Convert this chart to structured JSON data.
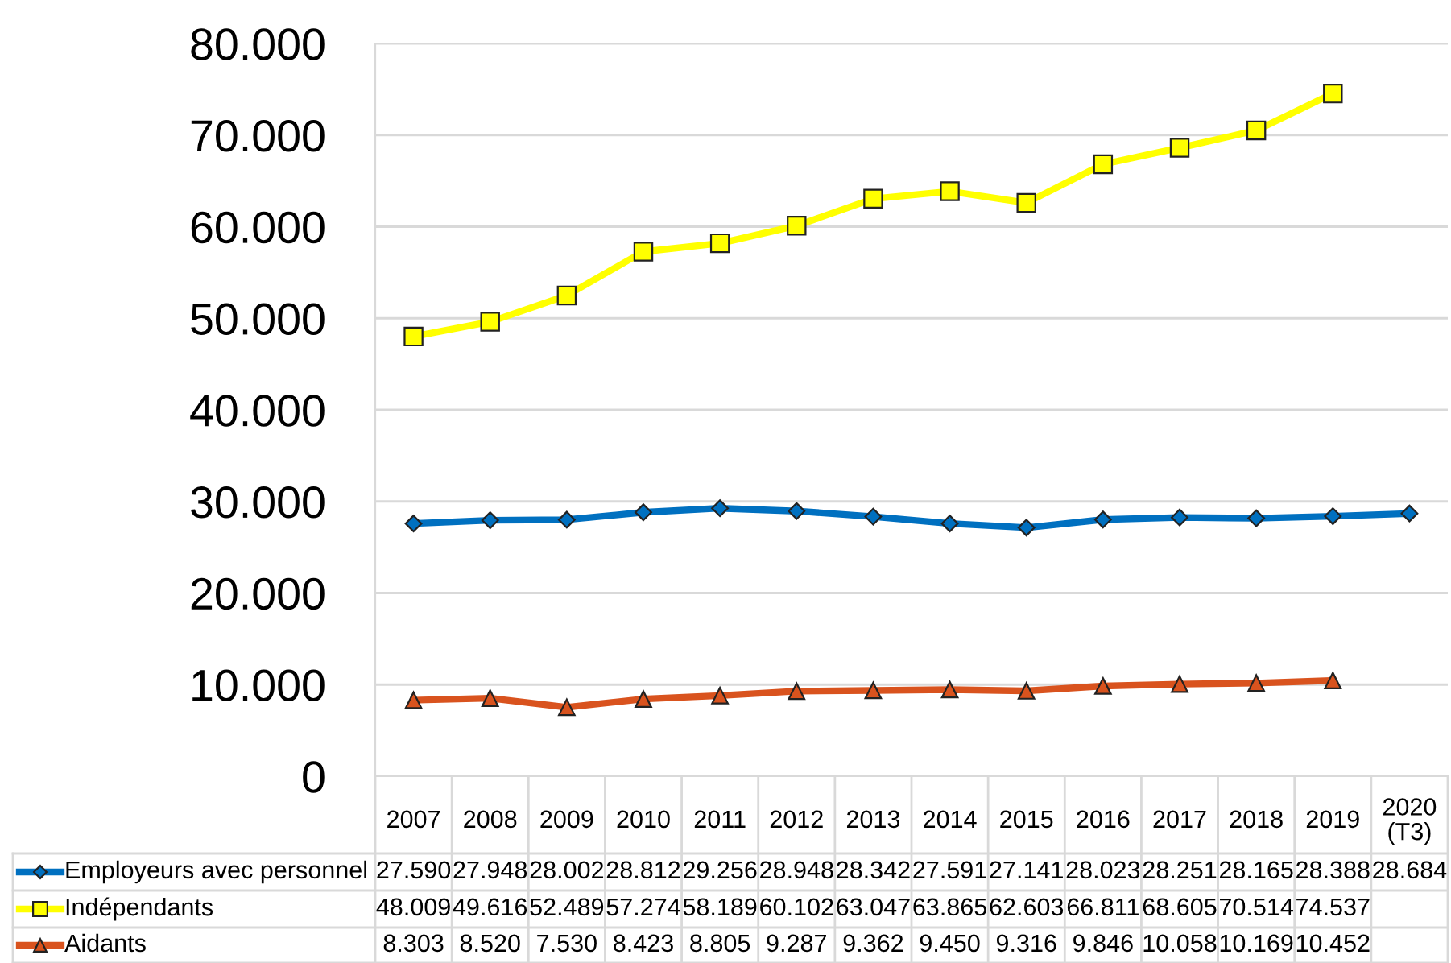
{
  "chart_data": {
    "type": "line",
    "categories": [
      "2007",
      "2008",
      "2009",
      "2010",
      "2011",
      "2012",
      "2013",
      "2014",
      "2015",
      "2016",
      "2017",
      "2018",
      "2019",
      "2020\n(T3)"
    ],
    "series": [
      {
        "name": "Employeurs avec personnel",
        "color": "#0070c0",
        "marker": "diamond",
        "values": [
          27590,
          27948,
          28002,
          28812,
          29256,
          28948,
          28342,
          27591,
          27141,
          28023,
          28251,
          28165,
          28388,
          28684
        ],
        "value_labels": [
          "27.590",
          "27.948",
          "28.002",
          "28.812",
          "29.256",
          "28.948",
          "28.342",
          "27.591",
          "27.141",
          "28.023",
          "28.251",
          "28.165",
          "28.388",
          "28.684"
        ]
      },
      {
        "name": "Indépendants",
        "color": "#ffff00",
        "marker": "square",
        "values": [
          48009,
          49616,
          52489,
          57274,
          58189,
          60102,
          63047,
          63865,
          62603,
          66811,
          68605,
          70514,
          74537,
          null
        ],
        "value_labels": [
          "48.009",
          "49.616",
          "52.489",
          "57.274",
          "58.189",
          "60.102",
          "63.047",
          "63.865",
          "62.603",
          "66.811",
          "68.605",
          "70.514",
          "74.537",
          null
        ]
      },
      {
        "name": "Aidants",
        "color": "#d9531e",
        "marker": "triangle",
        "values": [
          8303,
          8520,
          7530,
          8423,
          8805,
          9287,
          9362,
          9450,
          9316,
          9846,
          10058,
          10169,
          10452,
          null
        ],
        "value_labels": [
          "8.303",
          "8.520",
          "7.530",
          "8.423",
          "8.805",
          "9.287",
          "9.362",
          "9.450",
          "9.316",
          "9.846",
          "10.058",
          "10.169",
          "10.452",
          null
        ]
      }
    ],
    "ylim": [
      0,
      80000
    ],
    "yticks": [
      {
        "value": 0,
        "label": "0"
      },
      {
        "value": 10000,
        "label": "10.000"
      },
      {
        "value": 20000,
        "label": "20.000"
      },
      {
        "value": 30000,
        "label": "30.000"
      },
      {
        "value": 40000,
        "label": "40.000"
      },
      {
        "value": 50000,
        "label": "50.000"
      },
      {
        "value": 60000,
        "label": "60.000"
      },
      {
        "value": 70000,
        "label": "70.000"
      },
      {
        "value": 80000,
        "label": "80.000"
      }
    ],
    "grid": "y",
    "legend": "bottom",
    "line_style": "solid"
  }
}
